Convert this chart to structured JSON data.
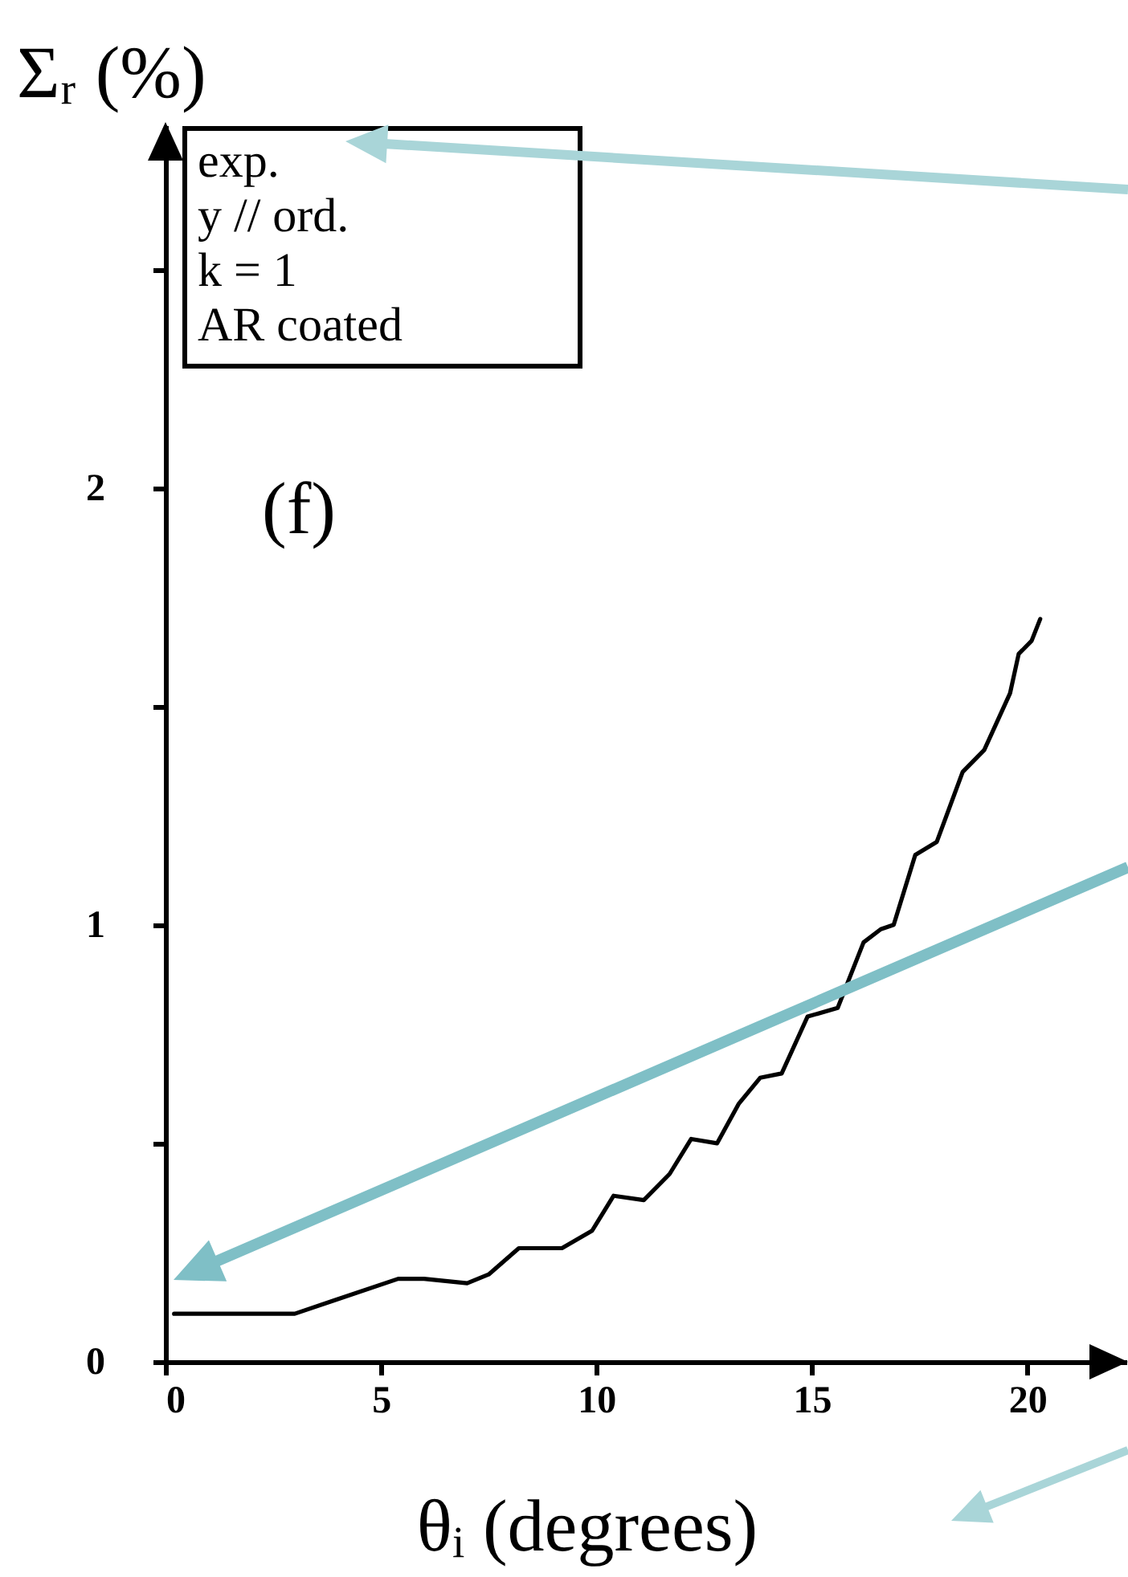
{
  "chart_data": {
    "type": "line",
    "xlabel": "θᵢ (degrees)",
    "ylabel": "Σᵣ (%)",
    "x": [
      0.2,
      1.0,
      3.0,
      3.9,
      5.4,
      6.0,
      7.0,
      7.5,
      8.2,
      9.2,
      9.9,
      10.4,
      11.1,
      11.7,
      12.2,
      12.8,
      13.3,
      13.8,
      14.3,
      14.9,
      15.6,
      16.2,
      16.6,
      16.9,
      17.4,
      17.9,
      18.5,
      19.0,
      19.6,
      19.8,
      20.1,
      20.3
    ],
    "series": [
      {
        "color": "#000000",
        "values": [
          0.11,
          0.11,
          0.11,
          0.14,
          0.19,
          0.19,
          0.18,
          0.2,
          0.26,
          0.26,
          0.3,
          0.38,
          0.37,
          0.43,
          0.51,
          0.5,
          0.59,
          0.65,
          0.66,
          0.79,
          0.81,
          0.96,
          0.99,
          1.0,
          1.16,
          1.19,
          1.35,
          1.4,
          1.53,
          1.62,
          1.65,
          1.7
        ]
      }
    ],
    "xlim": [
      0,
      22.3
    ],
    "ylim": [
      0,
      2.83
    ],
    "xticks": [
      0,
      5,
      10,
      15,
      20
    ],
    "yticks": [
      0,
      {
        "value": 0.5,
        "label": null
      },
      1,
      {
        "value": 1.5,
        "label": null
      },
      2,
      {
        "value": 2.5,
        "label": null
      }
    ],
    "annotations": [
      "exp.",
      "y // ord.",
      "k = 1",
      "AR coated",
      "(f)"
    ],
    "grid": false,
    "marker": "none",
    "line_style": "solid"
  }
}
